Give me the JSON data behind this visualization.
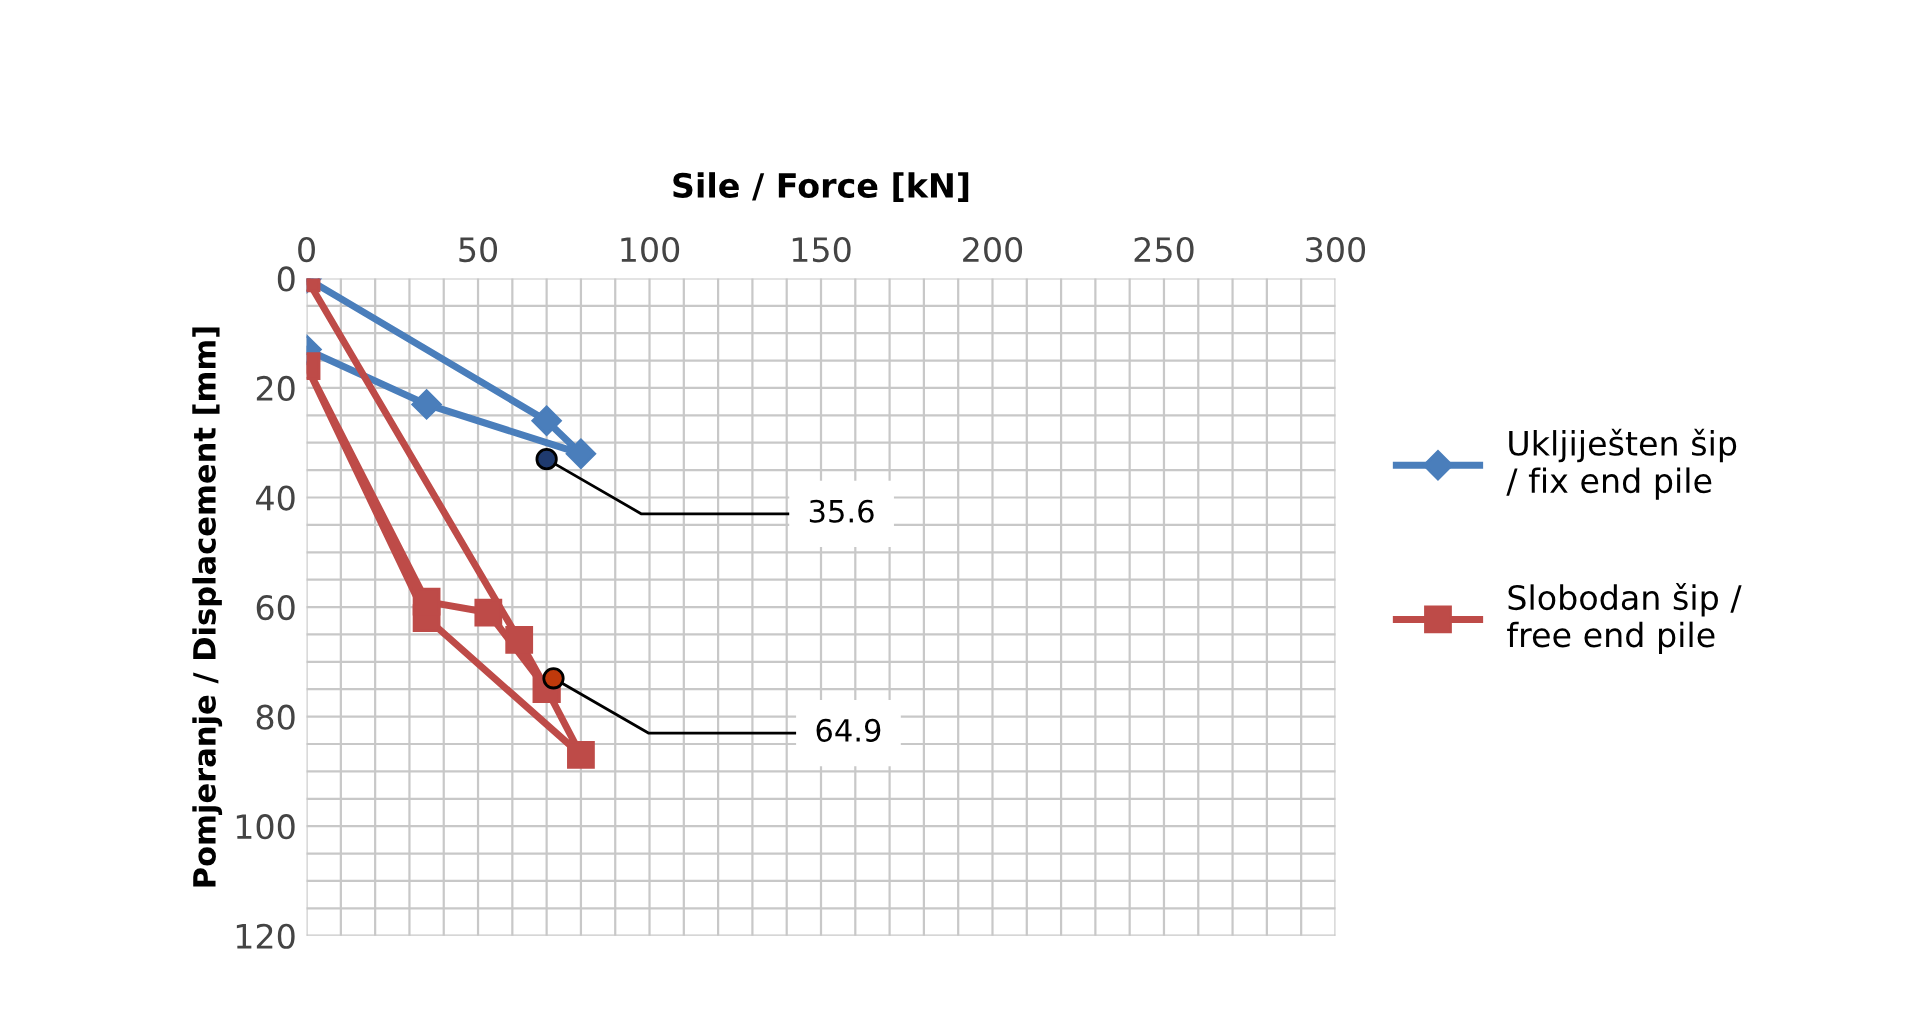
{
  "chart_data": {
    "type": "line",
    "xlabel": "Sile / Force [kN]",
    "ylabel": "Pomjeranje / Displacement [mm]",
    "xlim": [
      0,
      300
    ],
    "xticks": [
      0,
      50,
      100,
      150,
      200,
      250,
      300
    ],
    "ylim": [
      120,
      0
    ],
    "yticks": [
      0,
      20,
      40,
      60,
      80,
      100,
      120
    ],
    "grid": true,
    "legend": "right",
    "line_style": "solid",
    "series": [
      {
        "name": "Ukljiješten šip\n/ fix end pile",
        "color": "#4a7ebb",
        "marker": "diamond",
        "x": [
          0,
          70,
          80,
          35,
          0
        ],
        "values": [
          0,
          26,
          32,
          23,
          13
        ]
      },
      {
        "name": "Slobodan šip /\nfree end pile",
        "color": "#be4b48",
        "marker": "square",
        "x": [
          0,
          62,
          70,
          80,
          35,
          0,
          35,
          53,
          70
        ],
        "values": [
          0,
          66,
          75,
          87,
          62,
          16,
          59,
          61,
          75
        ]
      }
    ],
    "annotations": [
      {
        "text": "35.6",
        "x": 70,
        "y": 33
      },
      {
        "text": "64.9",
        "x": 72,
        "y": 73
      }
    ]
  }
}
